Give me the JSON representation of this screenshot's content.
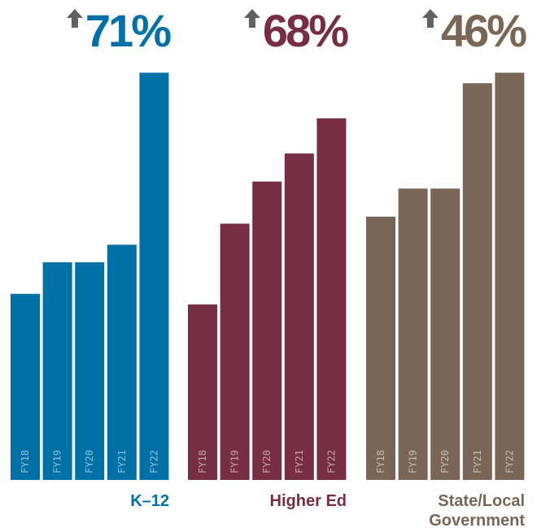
{
  "chart_data": [
    {
      "type": "bar",
      "title": "K–12",
      "change_label": "71%",
      "change_direction": "up",
      "color": "#0071A7",
      "categories": [
        "FY18",
        "FY19",
        "FY20",
        "FY21",
        "FY22"
      ],
      "values": [
        5.3,
        6.2,
        6.2,
        6.7,
        11.6
      ],
      "ylim": [
        0,
        12
      ]
    },
    {
      "type": "bar",
      "title": "Higher Ed",
      "change_label": "68%",
      "change_direction": "up",
      "color": "#772E42",
      "categories": [
        "FY18",
        "FY19",
        "FY20",
        "FY21",
        "FY22"
      ],
      "values": [
        5.0,
        7.3,
        8.5,
        9.3,
        10.3
      ],
      "ylim": [
        0,
        12
      ]
    },
    {
      "type": "bar",
      "title": "State/Local Government",
      "title_lines": [
        "State/Local",
        "Government"
      ],
      "change_label": "46%",
      "change_direction": "up",
      "color": "#7A6656",
      "categories": [
        "FY18",
        "FY19",
        "FY20",
        "FY21",
        "FY22"
      ],
      "values": [
        7.5,
        8.3,
        8.3,
        11.3,
        11.6
      ],
      "ylim": [
        0,
        12
      ]
    }
  ],
  "arrow_color": "#616161"
}
